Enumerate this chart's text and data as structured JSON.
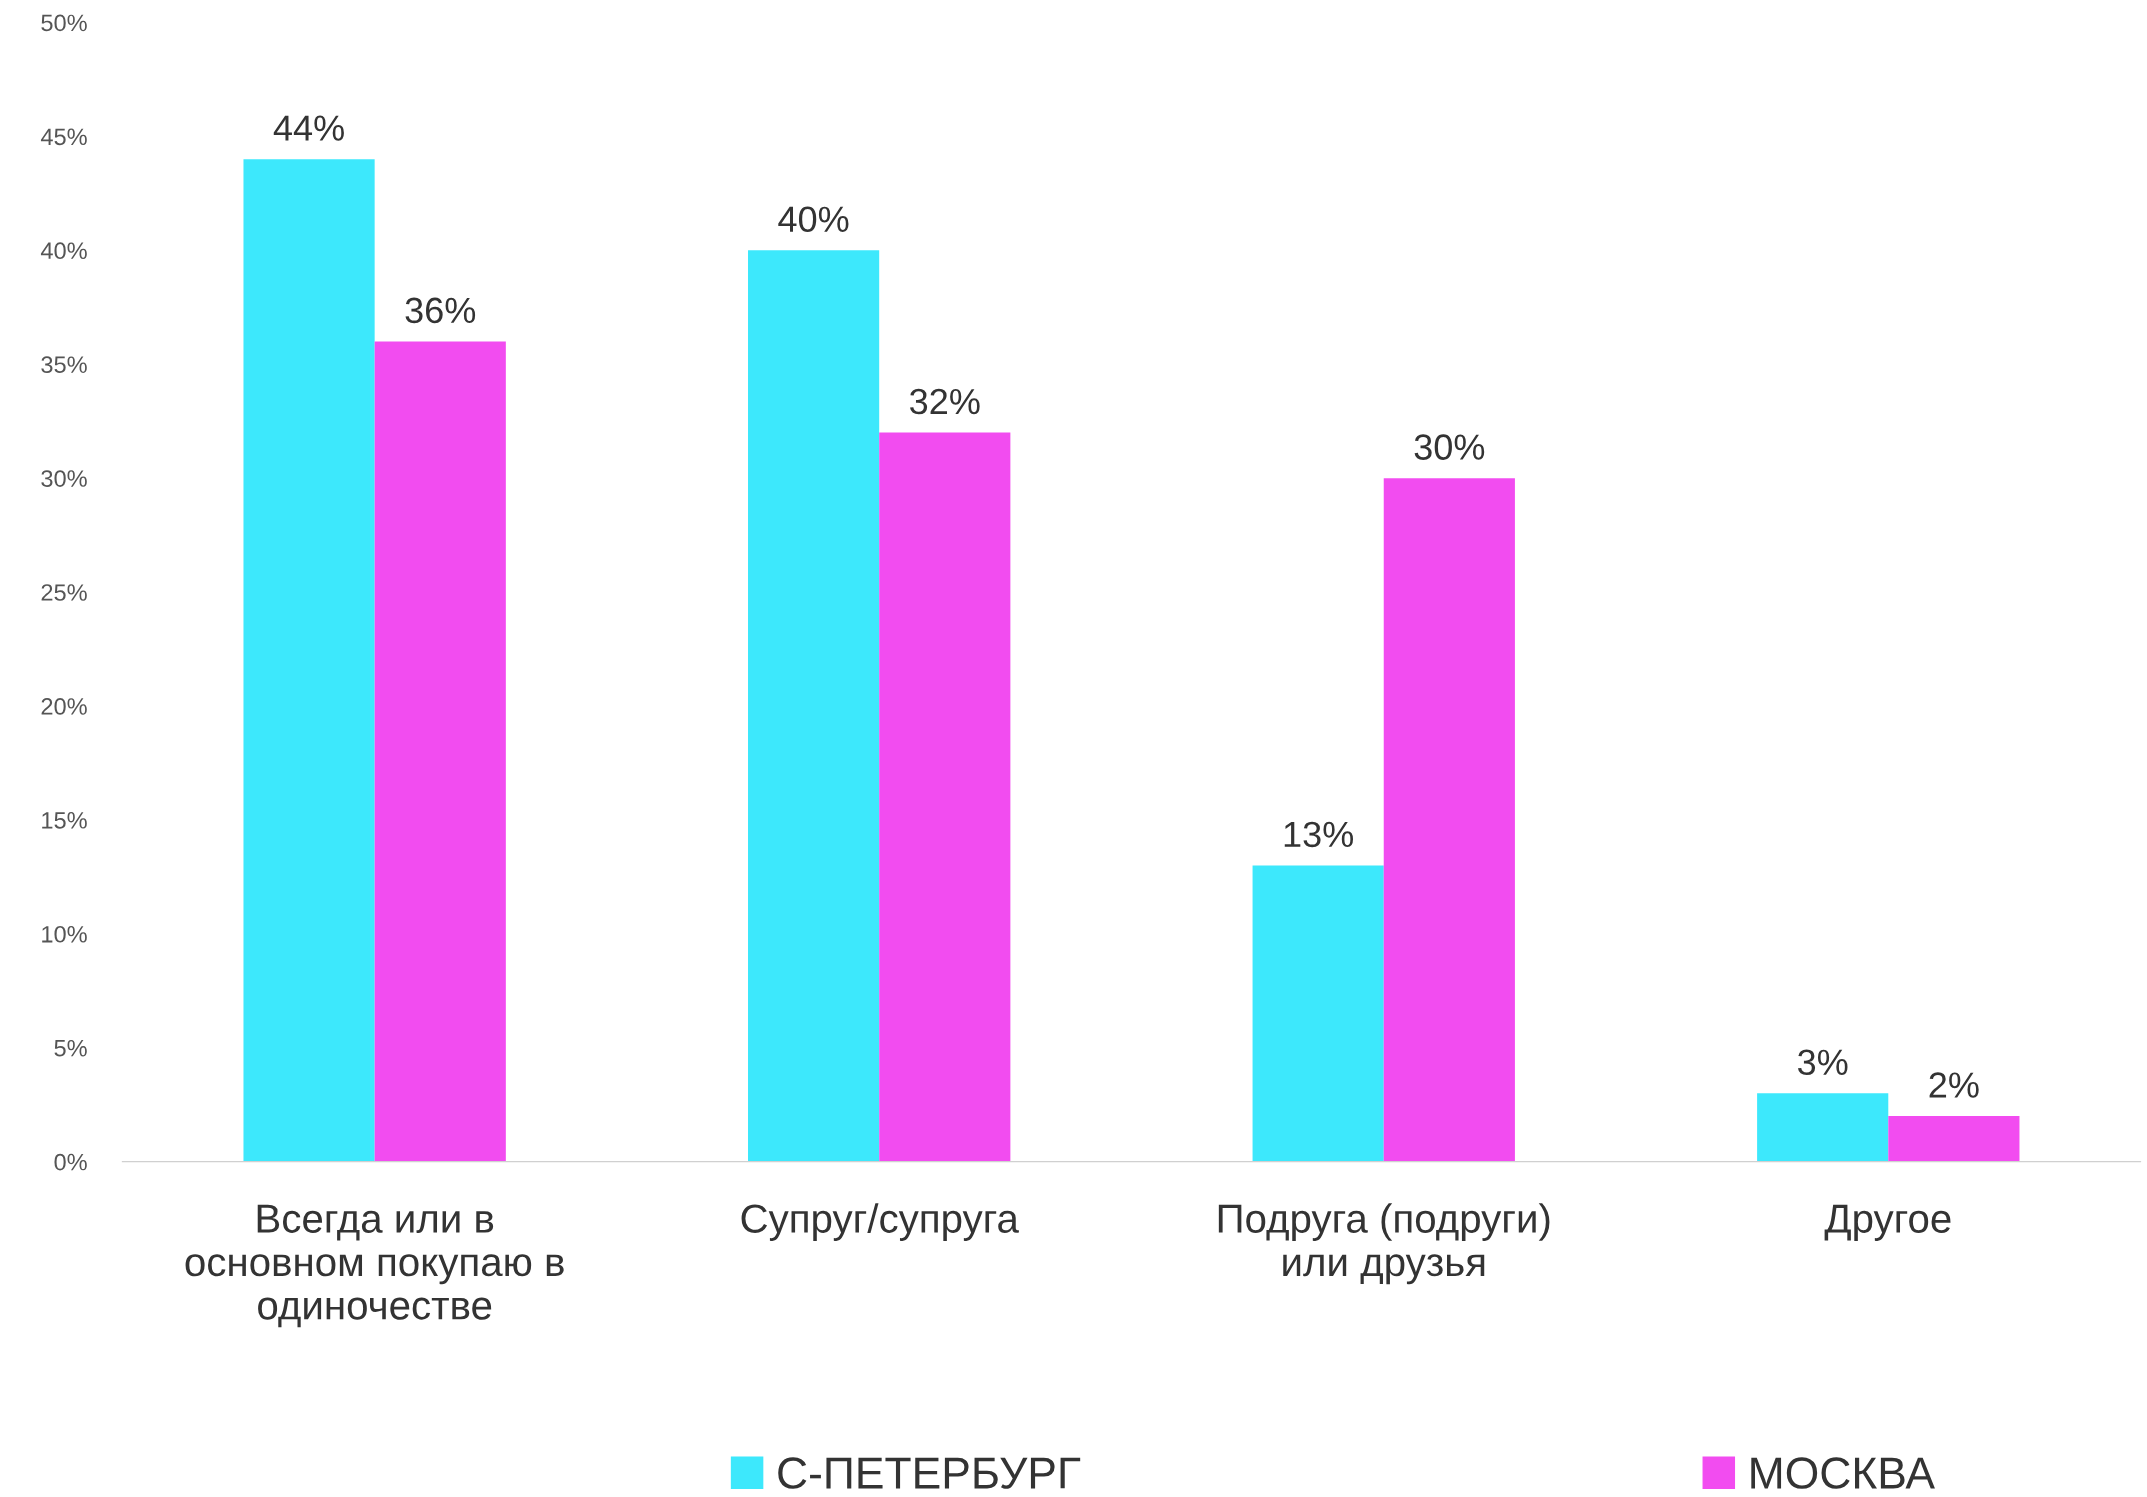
{
  "chart_data": {
    "type": "bar",
    "categories": [
      "Всегда или в\nосновном покупаю в\nодиночестве",
      "Супруг/супруга",
      "Подруга (подруги)\nили друзья",
      "Другое"
    ],
    "series": [
      {
        "name": "С-ПЕТЕРБУРГ",
        "color": "#3de8fc",
        "values": [
          44,
          40,
          13,
          3
        ],
        "value_labels": [
          "44%",
          "40%",
          "13%",
          "3%"
        ]
      },
      {
        "name": "МОСКВА",
        "color": "#f24cf0",
        "values": [
          36,
          32,
          30,
          2
        ],
        "value_labels": [
          "36%",
          "32%",
          "30%",
          "2%"
        ]
      }
    ],
    "ylim": [
      0,
      50
    ],
    "yticks": [
      {
        "value": 0,
        "label": "0%"
      },
      {
        "value": 5,
        "label": "5%"
      },
      {
        "value": 10,
        "label": "10%"
      },
      {
        "value": 15,
        "label": "15%"
      },
      {
        "value": 20,
        "label": "20%"
      },
      {
        "value": 25,
        "label": "25%"
      },
      {
        "value": 30,
        "label": "30%"
      },
      {
        "value": 35,
        "label": "35%"
      },
      {
        "value": 40,
        "label": "40%"
      },
      {
        "value": 45,
        "label": "45%"
      },
      {
        "value": 50,
        "label": "50%"
      }
    ],
    "grid": false,
    "legend": "bottom"
  }
}
